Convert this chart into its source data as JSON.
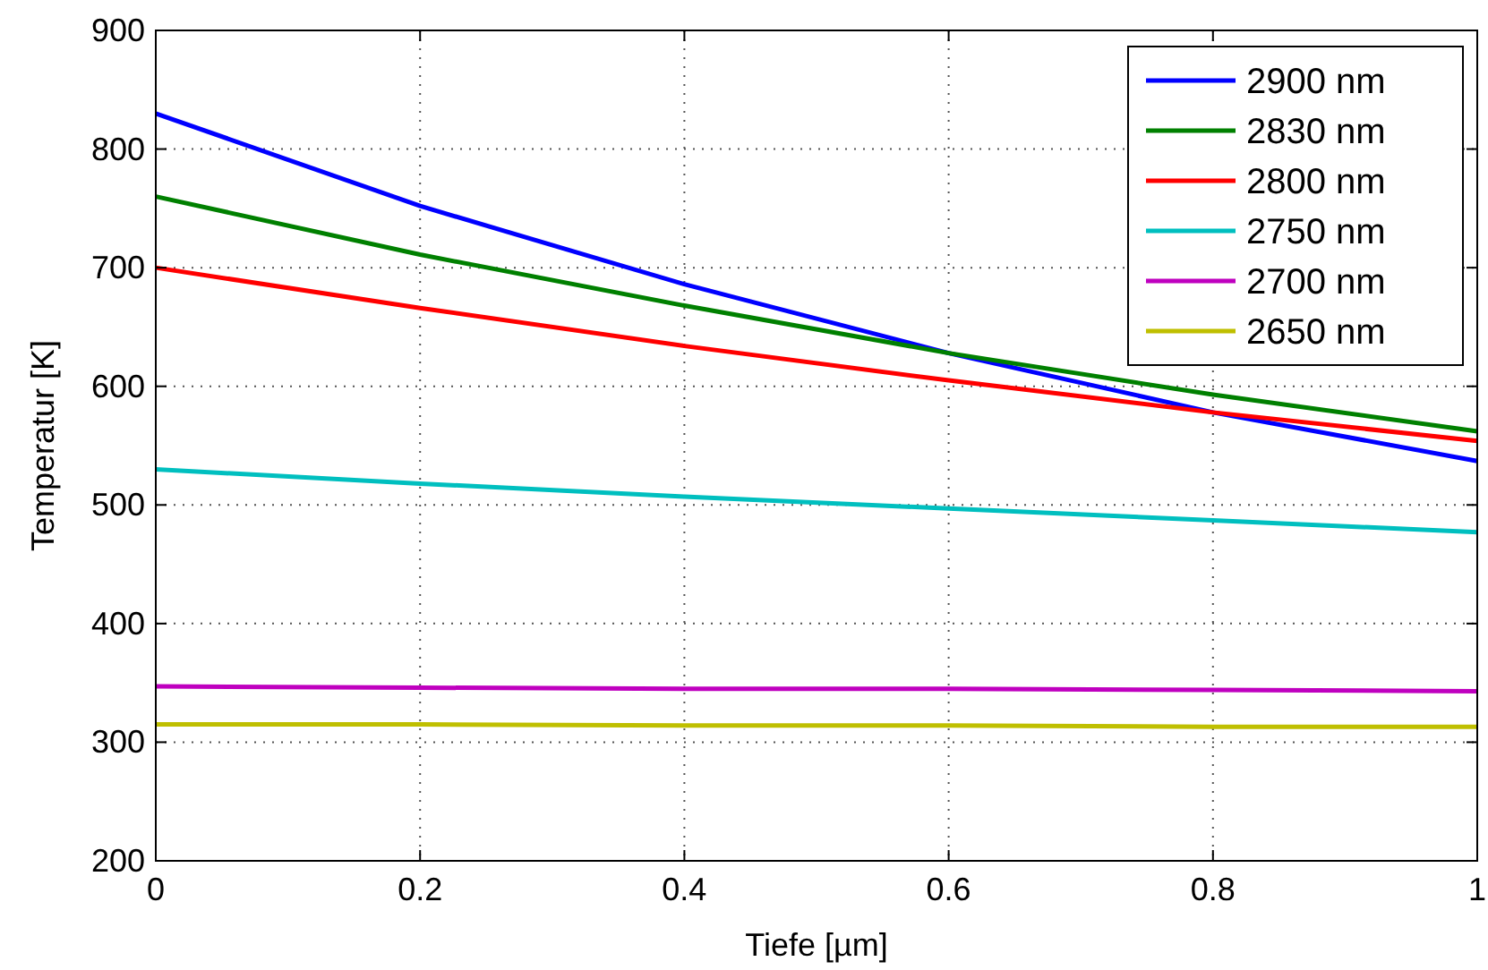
{
  "chart_data": {
    "type": "line",
    "xlabel": "Tiefe [µm]",
    "ylabel": "Temperatur [K]",
    "x": [
      0,
      0.2,
      0.4,
      0.6,
      0.8,
      1
    ],
    "series": [
      {
        "name": "2900 nm",
        "color": "#0000ff",
        "values": [
          830,
          752,
          686,
          628,
          578,
          537
        ]
      },
      {
        "name": "2830 nm",
        "color": "#008000",
        "values": [
          760,
          711,
          668,
          628,
          593,
          562
        ]
      },
      {
        "name": "2800 nm",
        "color": "#ff0000",
        "values": [
          700,
          666,
          634,
          605,
          578,
          554
        ]
      },
      {
        "name": "2750 nm",
        "color": "#00bfbf",
        "values": [
          530,
          518,
          507,
          497,
          487,
          477
        ]
      },
      {
        "name": "2700 nm",
        "color": "#bf00bf",
        "values": [
          347,
          346,
          345,
          345,
          344,
          343
        ]
      },
      {
        "name": "2650 nm",
        "color": "#bfbf00",
        "values": [
          315,
          315,
          314,
          314,
          313,
          313
        ]
      }
    ],
    "xlim": [
      0,
      1
    ],
    "xticks": [
      0,
      0.2,
      0.4,
      0.6,
      0.8,
      1
    ],
    "ylim": [
      200,
      900
    ],
    "yticks": [
      200,
      300,
      400,
      500,
      600,
      700,
      800,
      900
    ],
    "grid": true,
    "legend": "top right",
    "marker": "none",
    "line_style": "solid"
  }
}
